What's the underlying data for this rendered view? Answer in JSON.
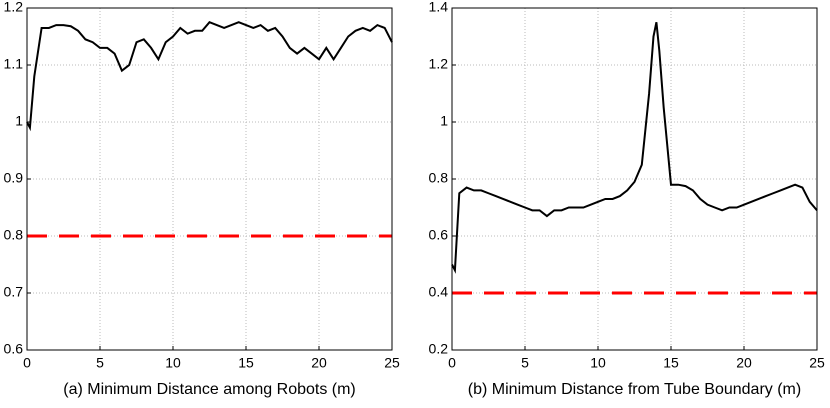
{
  "chart_data": [
    {
      "type": "line",
      "xlabel": "(a) Minimum Distance among Robots (m)",
      "xlim": [
        0,
        25
      ],
      "ylim": [
        0.6,
        1.2
      ],
      "xticks": [
        0,
        5,
        10,
        15,
        20,
        25
      ],
      "yticks": [
        0.6,
        0.7,
        0.8,
        0.9,
        1,
        1.1,
        1.2
      ],
      "grid": true,
      "series": [
        {
          "color": "#000000",
          "dash": false,
          "x": [
            0,
            0.2,
            0.5,
            1,
            1.5,
            2,
            2.5,
            3,
            3.5,
            4,
            4.5,
            5,
            5.5,
            6,
            6.5,
            7,
            7.5,
            8,
            8.5,
            9,
            9.5,
            10,
            10.5,
            11,
            11.5,
            12,
            12.5,
            13,
            13.5,
            14,
            14.5,
            15,
            15.5,
            16,
            16.5,
            17,
            17.5,
            18,
            18.5,
            19,
            19.5,
            20,
            20.5,
            21,
            21.5,
            22,
            22.5,
            23,
            23.5,
            24,
            24.5,
            25
          ],
          "values": [
            1.0,
            0.99,
            1.08,
            1.165,
            1.165,
            1.17,
            1.17,
            1.168,
            1.16,
            1.145,
            1.14,
            1.13,
            1.13,
            1.12,
            1.09,
            1.1,
            1.14,
            1.145,
            1.13,
            1.11,
            1.14,
            1.15,
            1.165,
            1.155,
            1.16,
            1.16,
            1.175,
            1.17,
            1.165,
            1.17,
            1.175,
            1.17,
            1.165,
            1.17,
            1.16,
            1.165,
            1.15,
            1.13,
            1.12,
            1.13,
            1.12,
            1.11,
            1.13,
            1.11,
            1.13,
            1.15,
            1.16,
            1.165,
            1.16,
            1.17,
            1.165,
            1.14
          ]
        },
        {
          "color": "#ff0000",
          "dash": true,
          "x": [
            0,
            25
          ],
          "values": [
            0.8,
            0.8
          ]
        }
      ]
    },
    {
      "type": "line",
      "xlabel": "(b) Minimum Distance from Tube Boundary (m)",
      "xlim": [
        0,
        25
      ],
      "ylim": [
        0.2,
        1.4
      ],
      "xticks": [
        0,
        5,
        10,
        15,
        20,
        25
      ],
      "yticks": [
        0.2,
        0.4,
        0.6,
        0.8,
        1,
        1.2,
        1.4
      ],
      "grid": true,
      "series": [
        {
          "color": "#000000",
          "dash": false,
          "x": [
            0,
            0.2,
            0.5,
            1,
            1.5,
            2,
            2.5,
            3,
            3.5,
            4,
            4.5,
            5,
            5.5,
            6,
            6.5,
            7,
            7.5,
            8,
            8.5,
            9,
            9.5,
            10,
            10.5,
            11,
            11.5,
            12,
            12.5,
            13,
            13.5,
            13.8,
            14,
            14.2,
            14.5,
            15,
            15.5,
            16,
            16.5,
            17,
            17.5,
            18,
            18.5,
            19,
            19.5,
            20,
            20.5,
            21,
            21.5,
            22,
            22.5,
            23,
            23.5,
            24,
            24.5,
            25
          ],
          "values": [
            0.5,
            0.48,
            0.75,
            0.77,
            0.76,
            0.76,
            0.75,
            0.74,
            0.73,
            0.72,
            0.71,
            0.7,
            0.69,
            0.69,
            0.67,
            0.69,
            0.69,
            0.7,
            0.7,
            0.7,
            0.71,
            0.72,
            0.73,
            0.73,
            0.74,
            0.76,
            0.79,
            0.85,
            1.1,
            1.3,
            1.35,
            1.25,
            1.05,
            0.78,
            0.78,
            0.775,
            0.76,
            0.73,
            0.71,
            0.7,
            0.69,
            0.7,
            0.7,
            0.71,
            0.72,
            0.73,
            0.74,
            0.75,
            0.76,
            0.77,
            0.78,
            0.77,
            0.72,
            0.69
          ]
        },
        {
          "color": "#ff0000",
          "dash": true,
          "x": [
            0,
            25
          ],
          "values": [
            0.4,
            0.4
          ]
        }
      ]
    }
  ]
}
